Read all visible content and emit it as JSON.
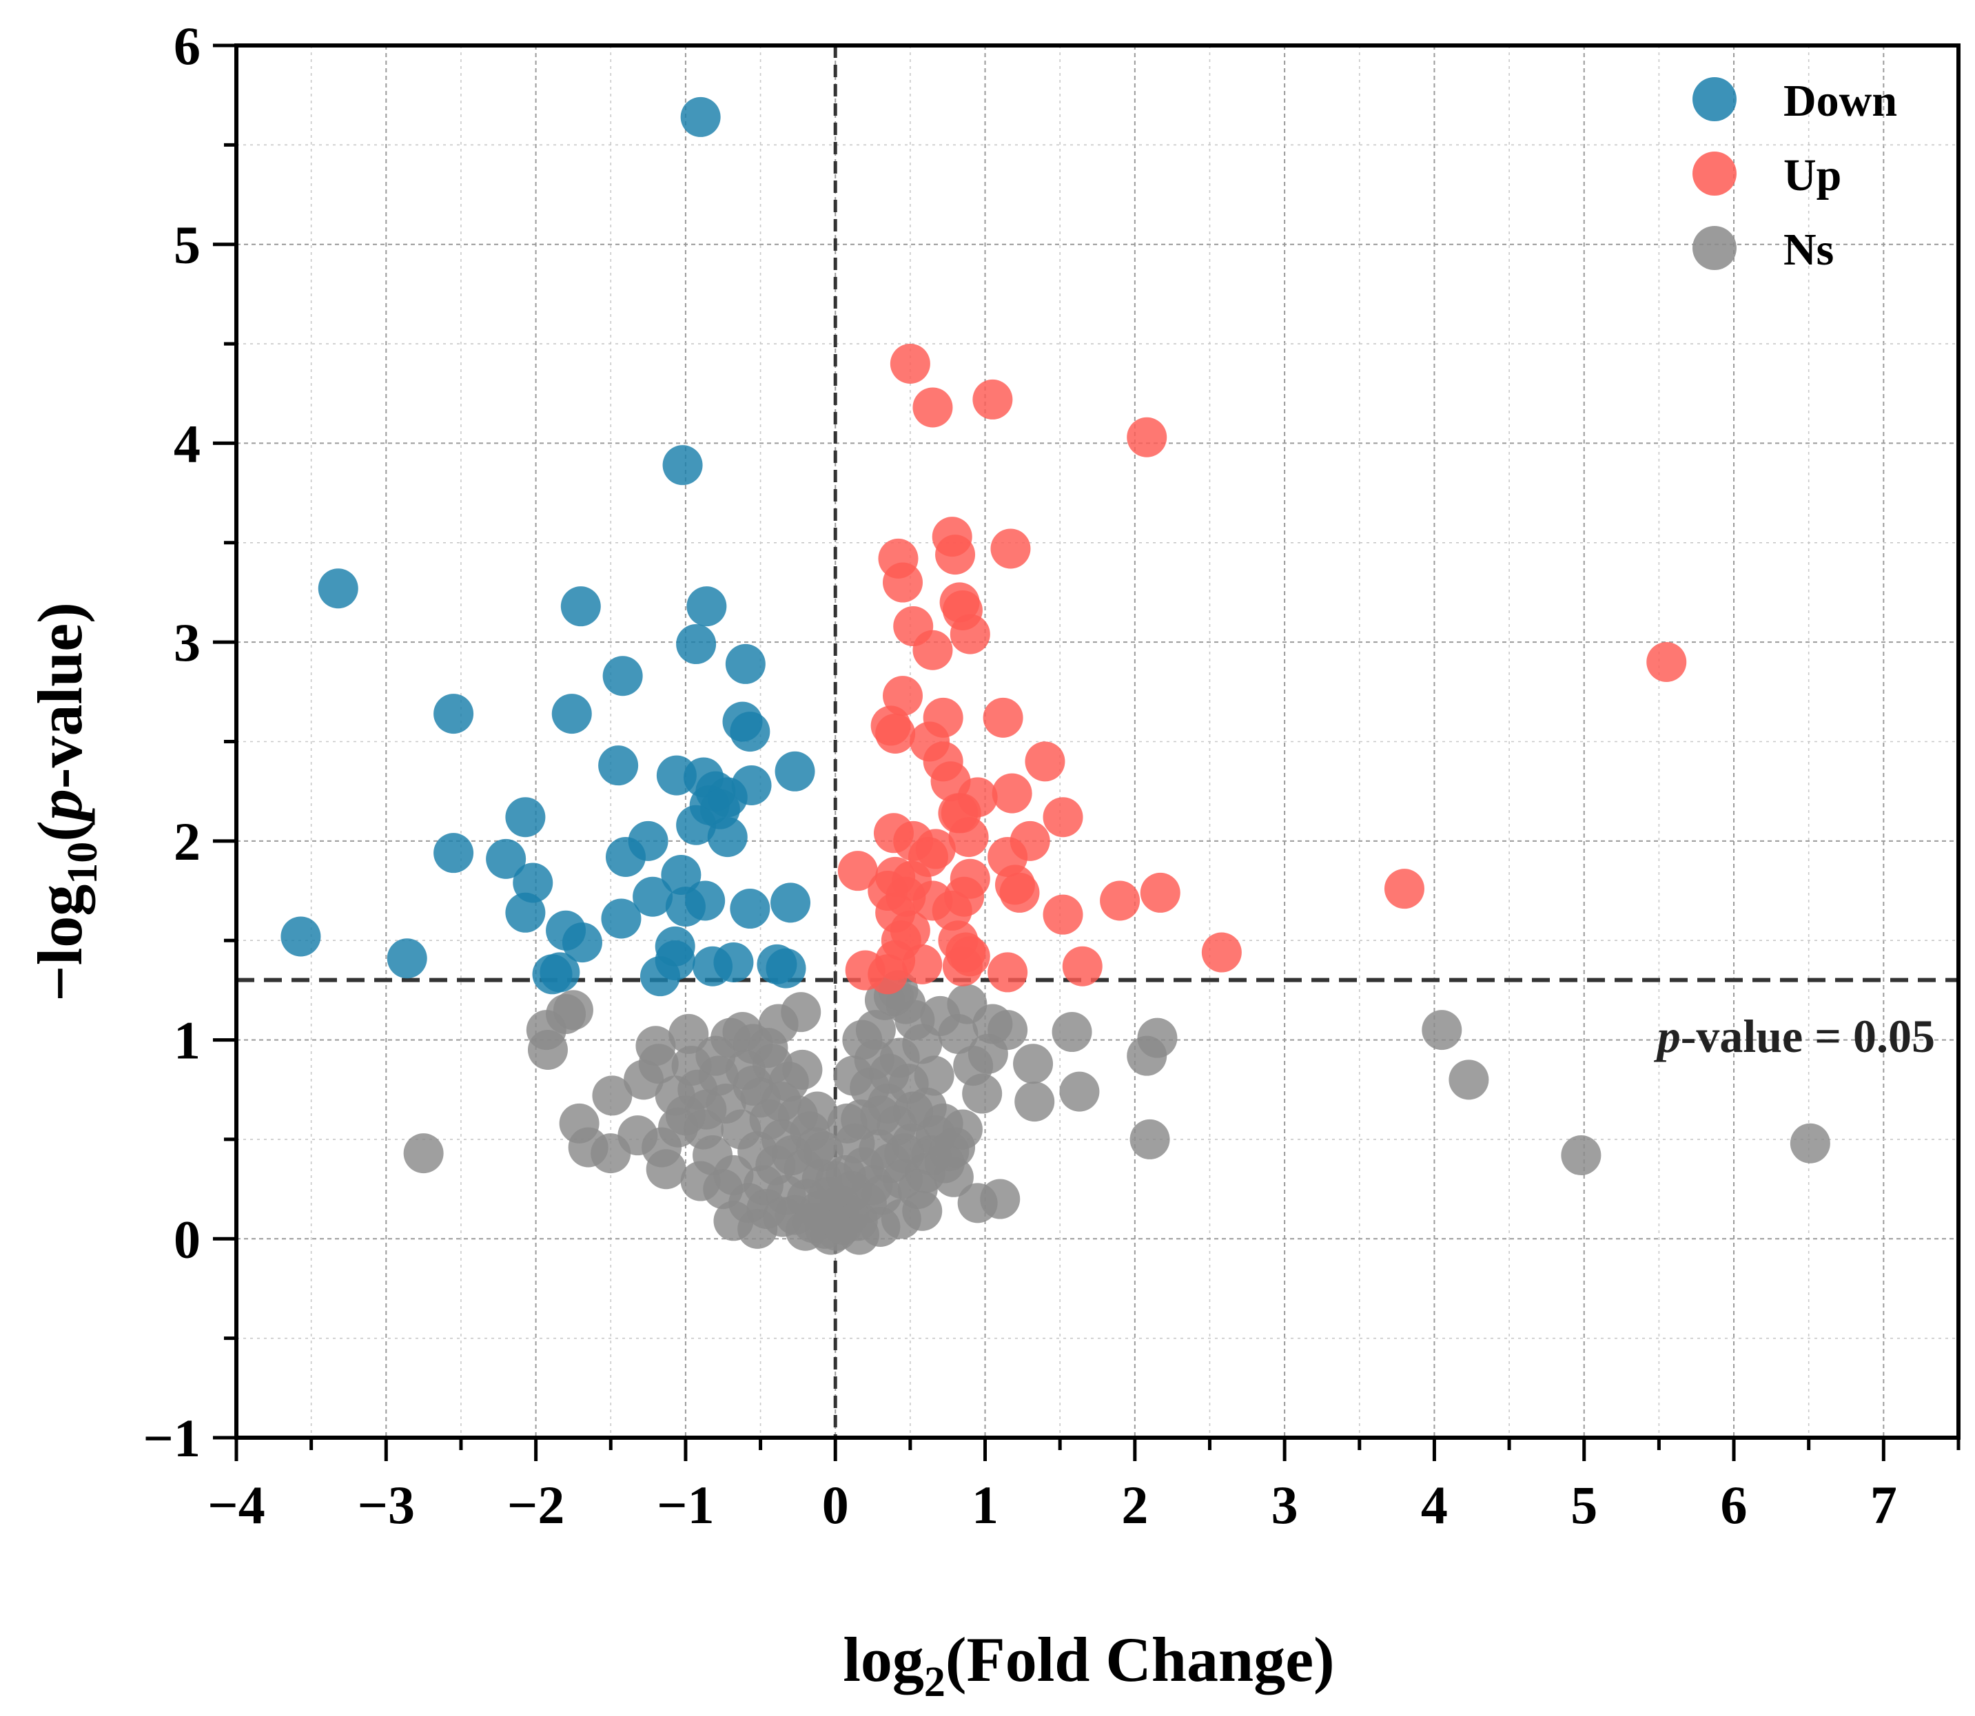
{
  "chart_data": {
    "type": "scatter",
    "title": "",
    "xlabel": "log2(Fold Change)",
    "ylabel": "−log10(p-value)",
    "xlim": [
      -4,
      7.5
    ],
    "ylim": [
      -1,
      6
    ],
    "x_ticks": [
      -4,
      -3,
      -2,
      -1,
      0,
      1,
      2,
      3,
      4,
      5,
      6,
      7
    ],
    "y_ticks": [
      -1,
      0,
      1,
      2,
      3,
      4,
      5,
      6
    ],
    "x_tick_labels": [
      "−4",
      "−3",
      "−2",
      "−1",
      "0",
      "1",
      "2",
      "3",
      "4",
      "5",
      "6",
      "7"
    ],
    "y_tick_labels": [
      "−1",
      "0",
      "1",
      "2",
      "3",
      "4",
      "5",
      "6"
    ],
    "grid": true,
    "legend_position": "top-right",
    "threshold": {
      "y": 1.301,
      "x": 0,
      "label": "p-value = 0.05"
    },
    "series": [
      {
        "name": "Down",
        "color": "#1a7fab",
        "points": [
          [
            -0.9,
            5.64
          ],
          [
            -1.02,
            3.89
          ],
          [
            -3.32,
            3.27
          ],
          [
            -1.7,
            3.18
          ],
          [
            -0.86,
            3.18
          ],
          [
            -0.93,
            2.99
          ],
          [
            -0.6,
            2.89
          ],
          [
            -1.42,
            2.83
          ],
          [
            -2.55,
            2.64
          ],
          [
            -1.76,
            2.64
          ],
          [
            -0.62,
            2.6
          ],
          [
            -0.57,
            2.55
          ],
          [
            -1.45,
            2.38
          ],
          [
            -0.27,
            2.35
          ],
          [
            -1.06,
            2.33
          ],
          [
            -0.88,
            2.32
          ],
          [
            -0.56,
            2.28
          ],
          [
            -0.8,
            2.25
          ],
          [
            -0.72,
            2.22
          ],
          [
            -0.84,
            2.18
          ],
          [
            -0.77,
            2.16
          ],
          [
            -0.93,
            2.08
          ],
          [
            -2.07,
            2.12
          ],
          [
            -1.25,
            2.0
          ],
          [
            -0.72,
            2.02
          ],
          [
            -1.4,
            1.92
          ],
          [
            -2.55,
            1.94
          ],
          [
            -2.2,
            1.91
          ],
          [
            -1.03,
            1.83
          ],
          [
            -2.02,
            1.79
          ],
          [
            -1.22,
            1.72
          ],
          [
            -0.87,
            1.7
          ],
          [
            -1.0,
            1.67
          ],
          [
            -0.3,
            1.69
          ],
          [
            -0.57,
            1.66
          ],
          [
            -2.07,
            1.64
          ],
          [
            -1.43,
            1.61
          ],
          [
            -1.8,
            1.55
          ],
          [
            -3.57,
            1.52
          ],
          [
            -1.69,
            1.49
          ],
          [
            -1.07,
            1.47
          ],
          [
            -2.86,
            1.41
          ],
          [
            -1.07,
            1.4
          ],
          [
            -0.68,
            1.39
          ],
          [
            -0.82,
            1.37
          ],
          [
            -0.39,
            1.38
          ],
          [
            -0.33,
            1.36
          ],
          [
            -1.84,
            1.34
          ],
          [
            -1.89,
            1.33
          ],
          [
            -1.17,
            1.32
          ]
        ]
      },
      {
        "name": "Up",
        "color": "#fe5a53",
        "points": [
          [
            0.5,
            4.4
          ],
          [
            0.65,
            4.18
          ],
          [
            1.05,
            4.22
          ],
          [
            2.08,
            4.03
          ],
          [
            0.78,
            3.53
          ],
          [
            0.42,
            3.42
          ],
          [
            0.8,
            3.44
          ],
          [
            1.17,
            3.47
          ],
          [
            0.45,
            3.3
          ],
          [
            0.83,
            3.2
          ],
          [
            0.85,
            3.16
          ],
          [
            0.52,
            3.08
          ],
          [
            0.9,
            3.04
          ],
          [
            0.65,
            2.96
          ],
          [
            0.45,
            2.73
          ],
          [
            0.72,
            2.62
          ],
          [
            1.12,
            2.62
          ],
          [
            5.55,
            2.9
          ],
          [
            0.37,
            2.58
          ],
          [
            0.4,
            2.54
          ],
          [
            0.63,
            2.5
          ],
          [
            0.72,
            2.4
          ],
          [
            1.4,
            2.4
          ],
          [
            0.77,
            2.3
          ],
          [
            0.95,
            2.22
          ],
          [
            1.18,
            2.24
          ],
          [
            0.84,
            2.14
          ],
          [
            0.82,
            2.14
          ],
          [
            1.52,
            2.12
          ],
          [
            0.39,
            2.04
          ],
          [
            0.52,
            2.0
          ],
          [
            0.67,
            1.96
          ],
          [
            0.89,
            2.02
          ],
          [
            1.3,
            2.0
          ],
          [
            0.62,
            1.92
          ],
          [
            1.15,
            1.92
          ],
          [
            0.15,
            1.85
          ],
          [
            0.4,
            1.82
          ],
          [
            0.51,
            1.8
          ],
          [
            0.9,
            1.81
          ],
          [
            1.2,
            1.78
          ],
          [
            1.23,
            1.74
          ],
          [
            0.35,
            1.75
          ],
          [
            0.47,
            1.72
          ],
          [
            0.86,
            1.72
          ],
          [
            1.9,
            1.7
          ],
          [
            2.17,
            1.74
          ],
          [
            3.8,
            1.76
          ],
          [
            0.65,
            1.7
          ],
          [
            0.78,
            1.65
          ],
          [
            1.52,
            1.63
          ],
          [
            0.4,
            1.64
          ],
          [
            0.5,
            1.55
          ],
          [
            0.44,
            1.5
          ],
          [
            0.82,
            1.5
          ],
          [
            0.87,
            1.44
          ],
          [
            0.9,
            1.42
          ],
          [
            2.58,
            1.44
          ],
          [
            0.4,
            1.4
          ],
          [
            0.58,
            1.38
          ],
          [
            0.85,
            1.37
          ],
          [
            1.65,
            1.37
          ],
          [
            0.2,
            1.35
          ],
          [
            1.15,
            1.34
          ],
          [
            0.35,
            1.33
          ]
        ]
      },
      {
        "name": "Ns",
        "color": "#8a8a8a",
        "points": [
          [
            -2.75,
            0.43
          ],
          [
            -1.93,
            1.05
          ],
          [
            -1.92,
            0.95
          ],
          [
            -1.8,
            1.13
          ],
          [
            -1.75,
            1.15
          ],
          [
            -1.71,
            0.58
          ],
          [
            -1.65,
            0.46
          ],
          [
            -1.5,
            0.43
          ],
          [
            -1.49,
            0.72
          ],
          [
            -1.32,
            0.52
          ],
          [
            -1.28,
            0.8
          ],
          [
            -1.2,
            0.97
          ],
          [
            -1.18,
            0.88
          ],
          [
            -1.16,
            0.46
          ],
          [
            -1.13,
            0.35
          ],
          [
            -1.07,
            0.72
          ],
          [
            -1.05,
            0.56
          ],
          [
            -1.0,
            0.62
          ],
          [
            -0.98,
            1.03
          ],
          [
            -0.96,
            0.87
          ],
          [
            -0.92,
            0.75
          ],
          [
            -0.88,
            0.55
          ],
          [
            -0.82,
            0.42
          ],
          [
            -0.8,
            0.92
          ],
          [
            -0.78,
            0.82
          ],
          [
            -0.75,
            0.25
          ],
          [
            -0.73,
            0.68
          ],
          [
            -0.7,
            1.01
          ],
          [
            -0.68,
            0.32
          ],
          [
            -0.63,
            0.55
          ],
          [
            -0.6,
            0.85
          ],
          [
            -0.58,
            0.18
          ],
          [
            -0.55,
            0.98
          ],
          [
            -0.52,
            0.44
          ],
          [
            -0.5,
            0.71
          ],
          [
            -0.48,
            0.27
          ],
          [
            -0.46,
            0.15
          ],
          [
            -0.44,
            0.6
          ],
          [
            -0.42,
            0.88
          ],
          [
            -0.4,
            0.37
          ],
          [
            -0.38,
            1.08
          ],
          [
            -0.36,
            0.5
          ],
          [
            -0.33,
            0.22
          ],
          [
            -0.31,
            0.79
          ],
          [
            -0.29,
            0.42
          ],
          [
            -0.27,
            0.12
          ],
          [
            -0.25,
            0.62
          ],
          [
            -0.23,
            1.14
          ],
          [
            -0.21,
            0.35
          ],
          [
            -0.19,
            0.2
          ],
          [
            -0.17,
            0.54
          ],
          [
            -0.15,
            0.08
          ],
          [
            -0.13,
            0.46
          ],
          [
            -0.11,
            0.14
          ],
          [
            -0.09,
            0.3
          ],
          [
            -0.07,
            0.05
          ],
          [
            -0.05,
            0.21
          ],
          [
            -0.03,
            0.02
          ],
          [
            -0.01,
            0.1
          ],
          [
            0.01,
            0.04
          ],
          [
            0.03,
            0.17
          ],
          [
            0.05,
            0.07
          ],
          [
            0.07,
            0.32
          ],
          [
            0.09,
            0.12
          ],
          [
            0.11,
            0.24
          ],
          [
            0.13,
            0.48
          ],
          [
            0.15,
            0.09
          ],
          [
            0.17,
            0.6
          ],
          [
            0.19,
            0.36
          ],
          [
            0.21,
            0.18
          ],
          [
            0.23,
            0.76
          ],
          [
            0.25,
            0.27
          ],
          [
            0.27,
            1.05
          ],
          [
            0.29,
            0.45
          ],
          [
            0.31,
            0.22
          ],
          [
            0.33,
            1.2
          ],
          [
            0.35,
            0.68
          ],
          [
            0.37,
            0.38
          ],
          [
            0.39,
            1.22
          ],
          [
            0.41,
            0.57
          ],
          [
            0.43,
            0.91
          ],
          [
            0.45,
            0.3
          ],
          [
            0.47,
            1.18
          ],
          [
            0.49,
            0.78
          ],
          [
            0.51,
            0.48
          ],
          [
            0.53,
            1.1
          ],
          [
            0.55,
            0.25
          ],
          [
            0.58,
            0.98
          ],
          [
            0.61,
            0.66
          ],
          [
            0.64,
            0.42
          ],
          [
            0.67,
            0.52
          ],
          [
            0.7,
            1.12
          ],
          [
            0.73,
            0.38
          ],
          [
            0.76,
            0.44
          ],
          [
            0.79,
            0.31
          ],
          [
            0.82,
            1.03
          ],
          [
            0.85,
            0.55
          ],
          [
            0.88,
            1.18
          ],
          [
            0.92,
            0.87
          ],
          [
            0.95,
            0.18
          ],
          [
            0.98,
            0.73
          ],
          [
            1.02,
            0.93
          ],
          [
            1.05,
            1.08
          ],
          [
            1.1,
            0.2
          ],
          [
            1.15,
            1.05
          ],
          [
            1.32,
            0.88
          ],
          [
            1.33,
            0.69
          ],
          [
            1.58,
            1.04
          ],
          [
            1.63,
            0.74
          ],
          [
            2.08,
            0.92
          ],
          [
            2.1,
            0.5
          ],
          [
            2.15,
            1.01
          ],
          [
            4.05,
            1.05
          ],
          [
            4.23,
            0.8
          ],
          [
            4.98,
            0.42
          ],
          [
            6.51,
            0.48
          ],
          [
            -0.62,
            1.04
          ],
          [
            -0.55,
            0.77
          ],
          [
            -0.45,
            0.96
          ],
          [
            -0.36,
            0.69
          ],
          [
            -0.22,
            0.85
          ],
          [
            -0.12,
            0.64
          ],
          [
            -0.08,
            0.44
          ],
          [
            0.0,
            0.29
          ],
          [
            0.08,
            0.58
          ],
          [
            0.12,
            0.82
          ],
          [
            0.18,
            1.0
          ],
          [
            0.26,
            0.9
          ],
          [
            0.3,
            0.62
          ],
          [
            0.36,
            0.83
          ],
          [
            0.42,
            1.25
          ],
          [
            0.46,
            0.43
          ],
          [
            0.52,
            0.64
          ],
          [
            0.6,
            0.33
          ],
          [
            0.66,
            0.82
          ],
          [
            0.72,
            0.58
          ],
          [
            0.8,
            0.46
          ],
          [
            -0.9,
            0.29
          ],
          [
            -0.86,
            0.65
          ],
          [
            -0.68,
            0.09
          ],
          [
            -0.52,
            0.05
          ],
          [
            -0.35,
            0.11
          ],
          [
            -0.2,
            0.04
          ],
          [
            0.16,
            0.02
          ],
          [
            0.3,
            0.06
          ],
          [
            0.44,
            0.1
          ],
          [
            0.58,
            0.14
          ]
        ]
      }
    ],
    "legend": [
      "Down",
      "Up",
      "Ns"
    ]
  }
}
